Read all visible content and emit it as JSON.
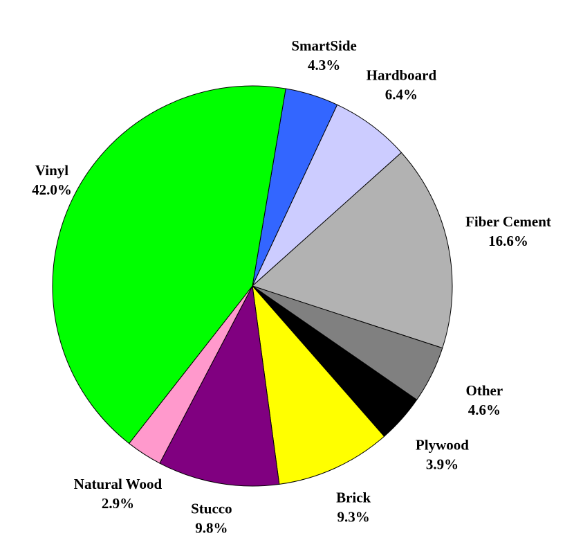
{
  "chart_data": {
    "type": "pie",
    "categories": [
      "SmartSide",
      "Hardboard",
      "Fiber Cement",
      "Other",
      "Plywood",
      "Brick",
      "Stucco",
      "Natural Wood",
      "Vinyl"
    ],
    "values": [
      4.3,
      6.4,
      16.6,
      4.6,
      3.9,
      9.3,
      9.8,
      2.9,
      42.0
    ],
    "value_labels": [
      "4.3%",
      "6.4%",
      "16.6%",
      "4.6%",
      "3.9%",
      "9.3%",
      "9.8%",
      "2.9%",
      "42.0%"
    ],
    "colors": [
      "#3366ff",
      "#ccccff",
      "#b2b2b2",
      "#808080",
      "#000000",
      "#ffff00",
      "#800080",
      "#ff99cc",
      "#00ff00"
    ]
  }
}
